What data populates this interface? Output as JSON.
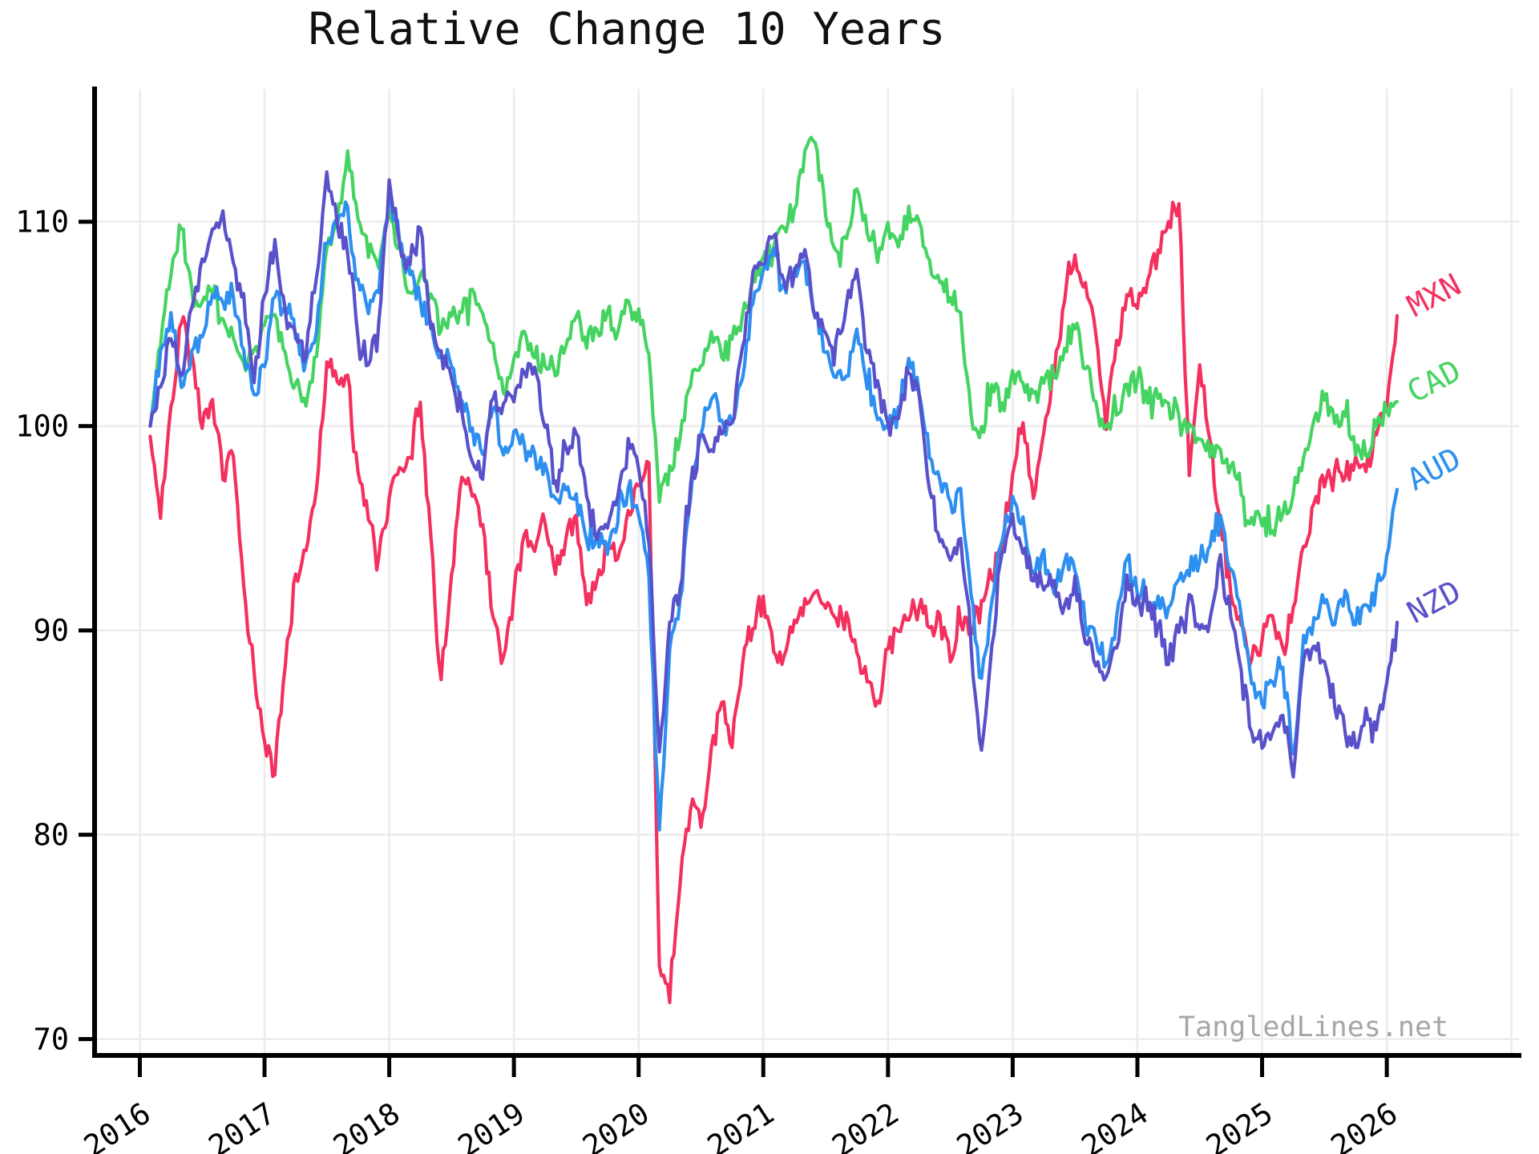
{
  "watermark": "TangledLines.net",
  "chart_data": {
    "type": "line",
    "title": "Relative Change 10 Years",
    "xlabel": "",
    "ylabel": "",
    "x_start": 2016.083,
    "x_step_years": 0.083333,
    "x_ticks": [
      2016,
      2017,
      2018,
      2019,
      2020,
      2021,
      2022,
      2023,
      2024,
      2025,
      2026
    ],
    "y_ticks": [
      70,
      80,
      90,
      100,
      110
    ],
    "xlim": [
      2015.65,
      2027.06
    ],
    "ylim": [
      69.2,
      116.5
    ],
    "grid": true,
    "grid_color": "#ebebeb",
    "axis_color": "#000000",
    "background": "#ffffff",
    "legend_position": "right-outside",
    "style": {
      "line_width": 4.2,
      "noise_amplitude": 0.6,
      "noise_seed": 42,
      "noise_substeps": 5,
      "label_rotation_deg": -33,
      "legend_rotation_deg": -28
    },
    "series": [
      {
        "name": "MXN",
        "color": "#f3305e",
        "values": [
          99.5,
          95.5,
          101,
          105.3,
          103.5,
          100,
          101.5,
          97.5,
          98.5,
          92,
          88,
          84.5,
          83,
          88.5,
          92.5,
          94,
          97,
          103.3,
          102,
          102.5,
          97.5,
          95.5,
          93.5,
          96.5,
          98,
          98.5,
          101,
          94.5,
          87.5,
          92.5,
          97.5,
          96.5,
          95,
          90.5,
          88.5,
          92,
          94.5,
          94,
          95.5,
          93,
          94.5,
          95.5,
          91.5,
          92.5,
          94,
          93.5,
          96,
          97,
          98,
          73.5,
          71.8,
          77.5,
          81.5,
          80.5,
          84,
          86.5,
          84.5,
          88.5,
          90.5,
          91.5,
          89,
          88.5,
          90.5,
          91.5,
          92,
          91,
          90.5,
          91,
          89,
          87.5,
          86.5,
          89,
          90,
          90.5,
          91.5,
          90,
          90.5,
          88.5,
          90.5,
          90,
          91,
          92.5,
          94.5,
          97.5,
          100,
          96.5,
          99.5,
          102.5,
          106,
          108.5,
          107,
          104.5,
          100,
          104,
          106.5,
          106,
          107,
          108.5,
          110,
          111,
          97.5,
          103,
          99.5,
          95,
          92,
          90,
          88.5,
          89.5,
          90.5,
          89,
          91,
          94,
          96,
          97.5,
          98,
          97.5,
          98.5,
          98,
          99.5,
          101,
          105.4
        ]
      },
      {
        "name": "CAD",
        "color": "#45d361",
        "values": [
          100,
          104,
          107.5,
          110,
          106.5,
          106,
          106.5,
          105.5,
          104.5,
          103,
          103.5,
          105,
          105.5,
          103.5,
          102,
          101,
          103.5,
          108.5,
          110,
          113.5,
          110,
          108.5,
          108,
          110.5,
          108.5,
          106.5,
          107.5,
          106.5,
          104.5,
          105.5,
          105.5,
          106.5,
          105.5,
          104,
          101.5,
          103.5,
          104.5,
          103.5,
          103,
          102.5,
          104,
          105.5,
          104,
          104.5,
          105.5,
          104.5,
          106,
          105.5,
          103.5,
          96.5,
          98,
          99.5,
          102,
          103,
          104.5,
          103.5,
          104,
          105.5,
          107.5,
          108,
          108.5,
          110,
          110.5,
          113.5,
          114,
          110.5,
          108.5,
          109,
          111.5,
          109.5,
          108,
          110,
          108.5,
          110.5,
          110,
          108,
          107,
          106.5,
          105.5,
          100.5,
          99.8,
          102,
          101,
          102.5,
          102,
          101.5,
          102,
          102.5,
          104,
          105,
          103,
          101,
          100,
          100.5,
          102,
          102,
          101.5,
          101.5,
          101,
          100.5,
          100,
          99.5,
          98.5,
          99,
          98,
          96.5,
          95.5,
          95.3,
          95,
          96,
          96.5,
          98.5,
          100.5,
          101.3,
          100,
          100.7,
          99,
          98.7,
          100,
          101,
          101.2
        ]
      },
      {
        "name": "AUD",
        "color": "#2d8ff0",
        "values": [
          100,
          103.5,
          105.5,
          102,
          103.5,
          104.5,
          106.5,
          106,
          106.5,
          103.5,
          101.5,
          103,
          106.5,
          106,
          104.5,
          103,
          104.5,
          109,
          110,
          110.5,
          107,
          105.5,
          106.5,
          111.5,
          109,
          107.5,
          106,
          105,
          103.5,
          103,
          101,
          100,
          98.5,
          101,
          98.5,
          99.5,
          99,
          98.5,
          98,
          96.5,
          97,
          96.5,
          94.5,
          94.5,
          94,
          95.5,
          97,
          96,
          92.5,
          80,
          89,
          91.5,
          96.5,
          99.5,
          101.5,
          100.5,
          100,
          102.5,
          106,
          107.5,
          108.5,
          107,
          107.5,
          108,
          105.5,
          103.5,
          102,
          102.5,
          104.5,
          102,
          100.5,
          100,
          100.5,
          103.5,
          101.5,
          98.5,
          97.5,
          96,
          97,
          91.5,
          87.5,
          91.5,
          94.5,
          96.5,
          95.5,
          93,
          93.5,
          92,
          93.5,
          93,
          90.5,
          89.5,
          88.5,
          90.5,
          93.5,
          92,
          91.5,
          91.5,
          91,
          92.5,
          93,
          93.5,
          94,
          95.5,
          93,
          90.5,
          87.5,
          86.5,
          87.5,
          88,
          84,
          89.5,
          90.5,
          91.5,
          90.5,
          92,
          90.5,
          91,
          92,
          93.5,
          96.9
        ]
      },
      {
        "name": "NZD",
        "color": "#5951c9",
        "values": [
          100,
          102,
          104.5,
          102.5,
          106,
          108,
          109.5,
          110.5,
          108,
          106.5,
          102,
          106.5,
          109,
          105.5,
          104,
          103.5,
          107.5,
          112.5,
          110,
          108.5,
          104.5,
          103,
          105,
          112,
          109,
          108,
          109.5,
          105,
          103.5,
          102.5,
          100.5,
          98.5,
          97.5,
          101.5,
          101,
          101.5,
          102.5,
          103,
          100,
          97.5,
          99,
          99.5,
          96.5,
          94.5,
          95,
          96.5,
          99.5,
          98,
          94.5,
          84,
          90.5,
          92,
          97,
          99.5,
          99,
          99.5,
          100,
          104,
          107.5,
          108,
          109.5,
          107,
          107.5,
          108.5,
          105.5,
          104.5,
          104,
          106,
          107.5,
          103.5,
          102,
          100,
          100.5,
          102.5,
          101.5,
          97,
          94.5,
          93.5,
          94.5,
          89,
          84.2,
          89.5,
          94,
          95.5,
          94,
          92.5,
          92,
          92.5,
          91,
          92.5,
          89.5,
          88.5,
          87.5,
          89,
          92.5,
          91.5,
          91,
          90.5,
          88.5,
          90,
          91.5,
          90,
          90.5,
          93.5,
          90.5,
          88,
          85,
          84.5,
          85,
          86,
          83.2,
          88.5,
          89.5,
          88.5,
          86.5,
          85,
          84.2,
          86,
          85,
          87,
          90.4
        ]
      }
    ]
  }
}
